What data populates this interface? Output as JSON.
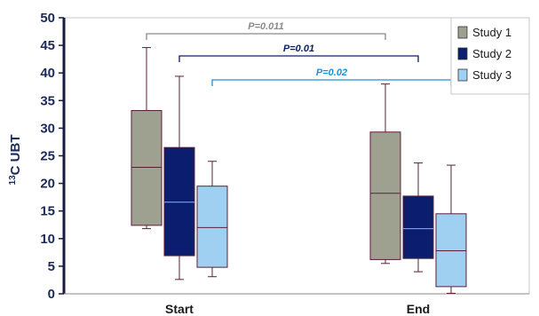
{
  "chart_data": {
    "type": "box",
    "ylabel_sup": "13",
    "ylabel_main": "C UBT",
    "ylim": [
      0,
      50
    ],
    "yticks": [
      "0",
      "5",
      "10",
      "15",
      "20",
      "25",
      "30",
      "35",
      "40",
      "45",
      "50"
    ],
    "categories": [
      "Start",
      "End"
    ],
    "legend_position": "top-right",
    "series": [
      {
        "name": "Study 1",
        "color": "#9ea190",
        "boxes": [
          {
            "min": 11.8,
            "q1": 12.4,
            "median": 22.9,
            "q3": 33.2,
            "max": 44.6
          },
          {
            "min": 5.5,
            "q1": 6.2,
            "median": 18.2,
            "q3": 29.3,
            "max": 38.0
          }
        ]
      },
      {
        "name": "Study 2",
        "color": "#0b1d6e",
        "boxes": [
          {
            "min": 2.6,
            "q1": 6.9,
            "median": 16.6,
            "q3": 26.5,
            "max": 39.4
          },
          {
            "min": 4.0,
            "q1": 6.4,
            "median": 11.8,
            "q3": 17.7,
            "max": 23.7
          }
        ]
      },
      {
        "name": "Study 3",
        "color": "#9fd0f2",
        "boxes": [
          {
            "min": 3.1,
            "q1": 4.8,
            "median": 12.0,
            "q3": 19.5,
            "max": 24.0
          },
          {
            "min": 0.1,
            "q1": 1.3,
            "median": 7.8,
            "q3": 14.5,
            "max": 23.3
          }
        ]
      }
    ],
    "whisker_color": "#5a1f3a",
    "annotations": [
      {
        "label": "P=0.011",
        "from_series": 0,
        "color": "#8a8a8a"
      },
      {
        "label": "P=0.01",
        "from_series": 1,
        "color": "#0b1d6e"
      },
      {
        "label": "P=0.02",
        "from_series": 2,
        "color": "#1f8fd6"
      }
    ]
  }
}
